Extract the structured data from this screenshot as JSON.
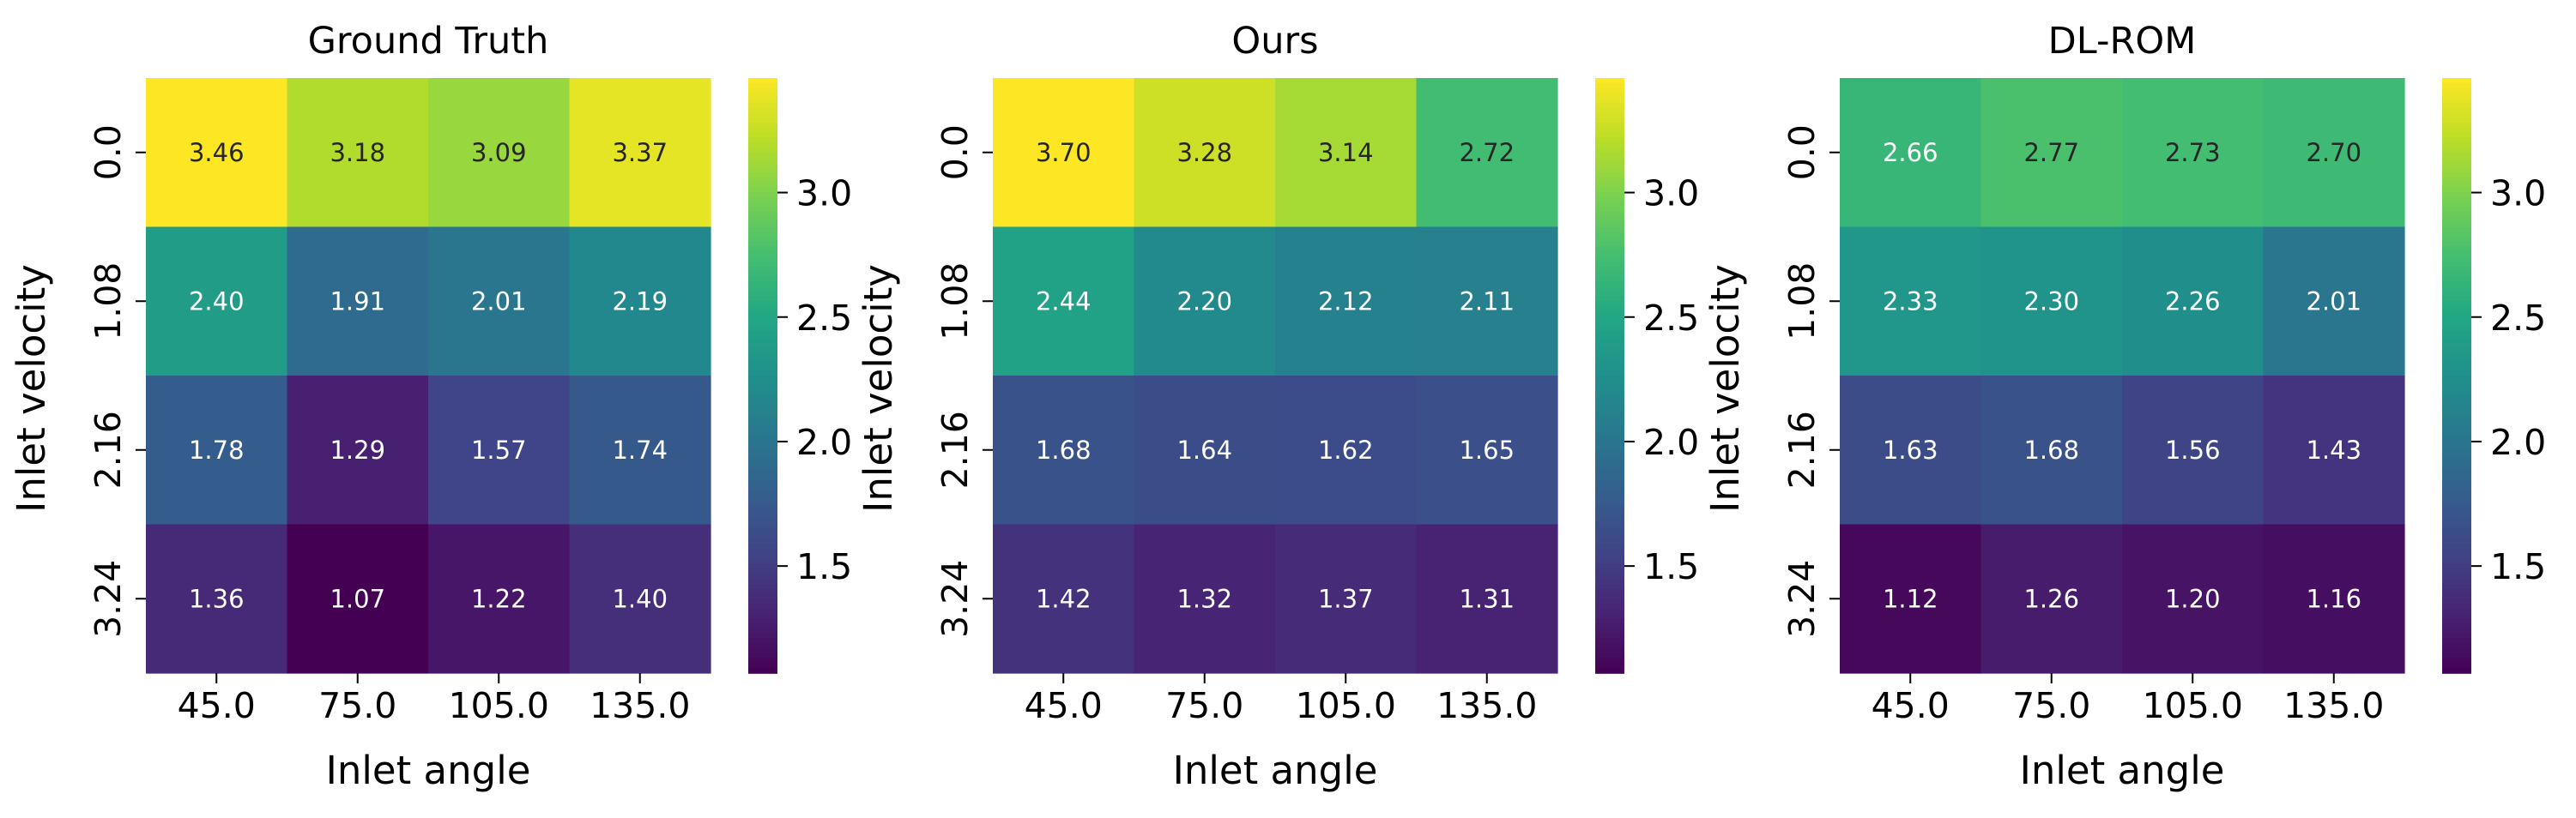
{
  "chart_data": [
    {
      "type": "heatmap",
      "title": "Ground Truth",
      "xlabel": "Inlet angle",
      "ylabel": "Inlet velocity",
      "x": [
        "45.0",
        "75.0",
        "105.0",
        "135.0"
      ],
      "y": [
        "0.0",
        "1.08",
        "2.16",
        "3.24"
      ],
      "values": [
        [
          3.46,
          3.18,
          3.09,
          3.37
        ],
        [
          2.4,
          1.91,
          2.01,
          2.19
        ],
        [
          1.78,
          1.29,
          1.57,
          1.74
        ],
        [
          1.36,
          1.07,
          1.22,
          1.4
        ]
      ],
      "labels": [
        [
          "3.46",
          "3.18",
          "3.09",
          "3.37"
        ],
        [
          "2.40",
          "1.91",
          "2.01",
          "2.19"
        ],
        [
          "1.78",
          "1.29",
          "1.57",
          "1.74"
        ],
        [
          "1.36",
          "1.07",
          "1.22",
          "1.40"
        ]
      ],
      "colormap": "viridis",
      "vmin": 1.07,
      "vmax": 3.46,
      "colorbar_ticks": [
        "1.5",
        "2.0",
        "2.5",
        "3.0"
      ]
    },
    {
      "type": "heatmap",
      "title": "Ours",
      "xlabel": "Inlet angle",
      "ylabel": "Inlet velocity",
      "x": [
        "45.0",
        "75.0",
        "105.0",
        "135.0"
      ],
      "y": [
        "0.0",
        "1.08",
        "2.16",
        "3.24"
      ],
      "values": [
        [
          3.7,
          3.28,
          3.14,
          2.72
        ],
        [
          2.44,
          2.2,
          2.12,
          2.11
        ],
        [
          1.68,
          1.64,
          1.62,
          1.65
        ],
        [
          1.42,
          1.32,
          1.37,
          1.31
        ]
      ],
      "labels": [
        [
          "3.70",
          "3.28",
          "3.14",
          "2.72"
        ],
        [
          "2.44",
          "2.20",
          "2.12",
          "2.11"
        ],
        [
          "1.68",
          "1.64",
          "1.62",
          "1.65"
        ],
        [
          "1.42",
          "1.32",
          "1.37",
          "1.31"
        ]
      ],
      "colormap": "viridis",
      "vmin": 1.07,
      "vmax": 3.46,
      "colorbar_ticks": [
        "1.5",
        "2.0",
        "2.5",
        "3.0"
      ]
    },
    {
      "type": "heatmap",
      "title": "DL-ROM",
      "xlabel": "Inlet angle",
      "ylabel": "Inlet velocity",
      "x": [
        "45.0",
        "75.0",
        "105.0",
        "135.0"
      ],
      "y": [
        "0.0",
        "1.08",
        "2.16",
        "3.24"
      ],
      "values": [
        [
          2.66,
          2.77,
          2.73,
          2.7
        ],
        [
          2.33,
          2.3,
          2.26,
          2.01
        ],
        [
          1.63,
          1.68,
          1.56,
          1.43
        ],
        [
          1.12,
          1.26,
          1.2,
          1.16
        ]
      ],
      "labels": [
        [
          "2.66",
          "2.77",
          "2.73",
          "2.70"
        ],
        [
          "2.33",
          "2.30",
          "2.26",
          "2.01"
        ],
        [
          "1.63",
          "1.68",
          "1.56",
          "1.43"
        ],
        [
          "1.12",
          "1.26",
          "1.20",
          "1.16"
        ]
      ],
      "colormap": "viridis",
      "vmin": 1.07,
      "vmax": 3.46,
      "colorbar_ticks": [
        "1.5",
        "2.0",
        "2.5",
        "3.0"
      ]
    }
  ]
}
